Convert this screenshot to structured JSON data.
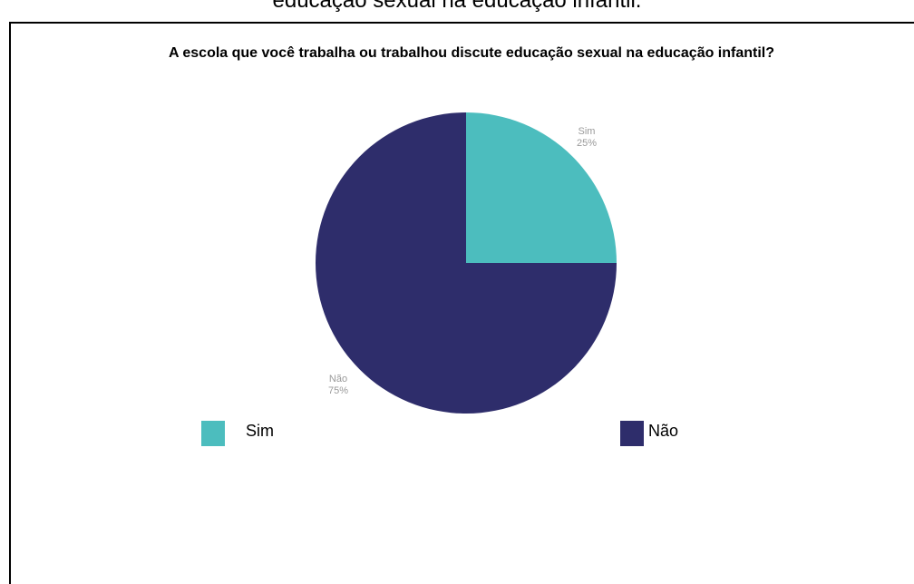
{
  "caption": "educação sexual na educação infantil.",
  "chart_data": {
    "type": "pie",
    "title": "A escola que você trabalha ou trabalhou discute educação sexual na educação infantil?",
    "slices": [
      {
        "label": "Sim",
        "value": 25,
        "percent_label": "25%",
        "color": "#4cbdbe"
      },
      {
        "label": "Não",
        "value": 75,
        "percent_label": "75%",
        "color": "#2e2d6b"
      }
    ],
    "legend": [
      {
        "label": "Sim",
        "color": "#4cbdbe"
      },
      {
        "label": "Não",
        "color": "#2e2d6b"
      }
    ],
    "legend_position": "bottom"
  }
}
